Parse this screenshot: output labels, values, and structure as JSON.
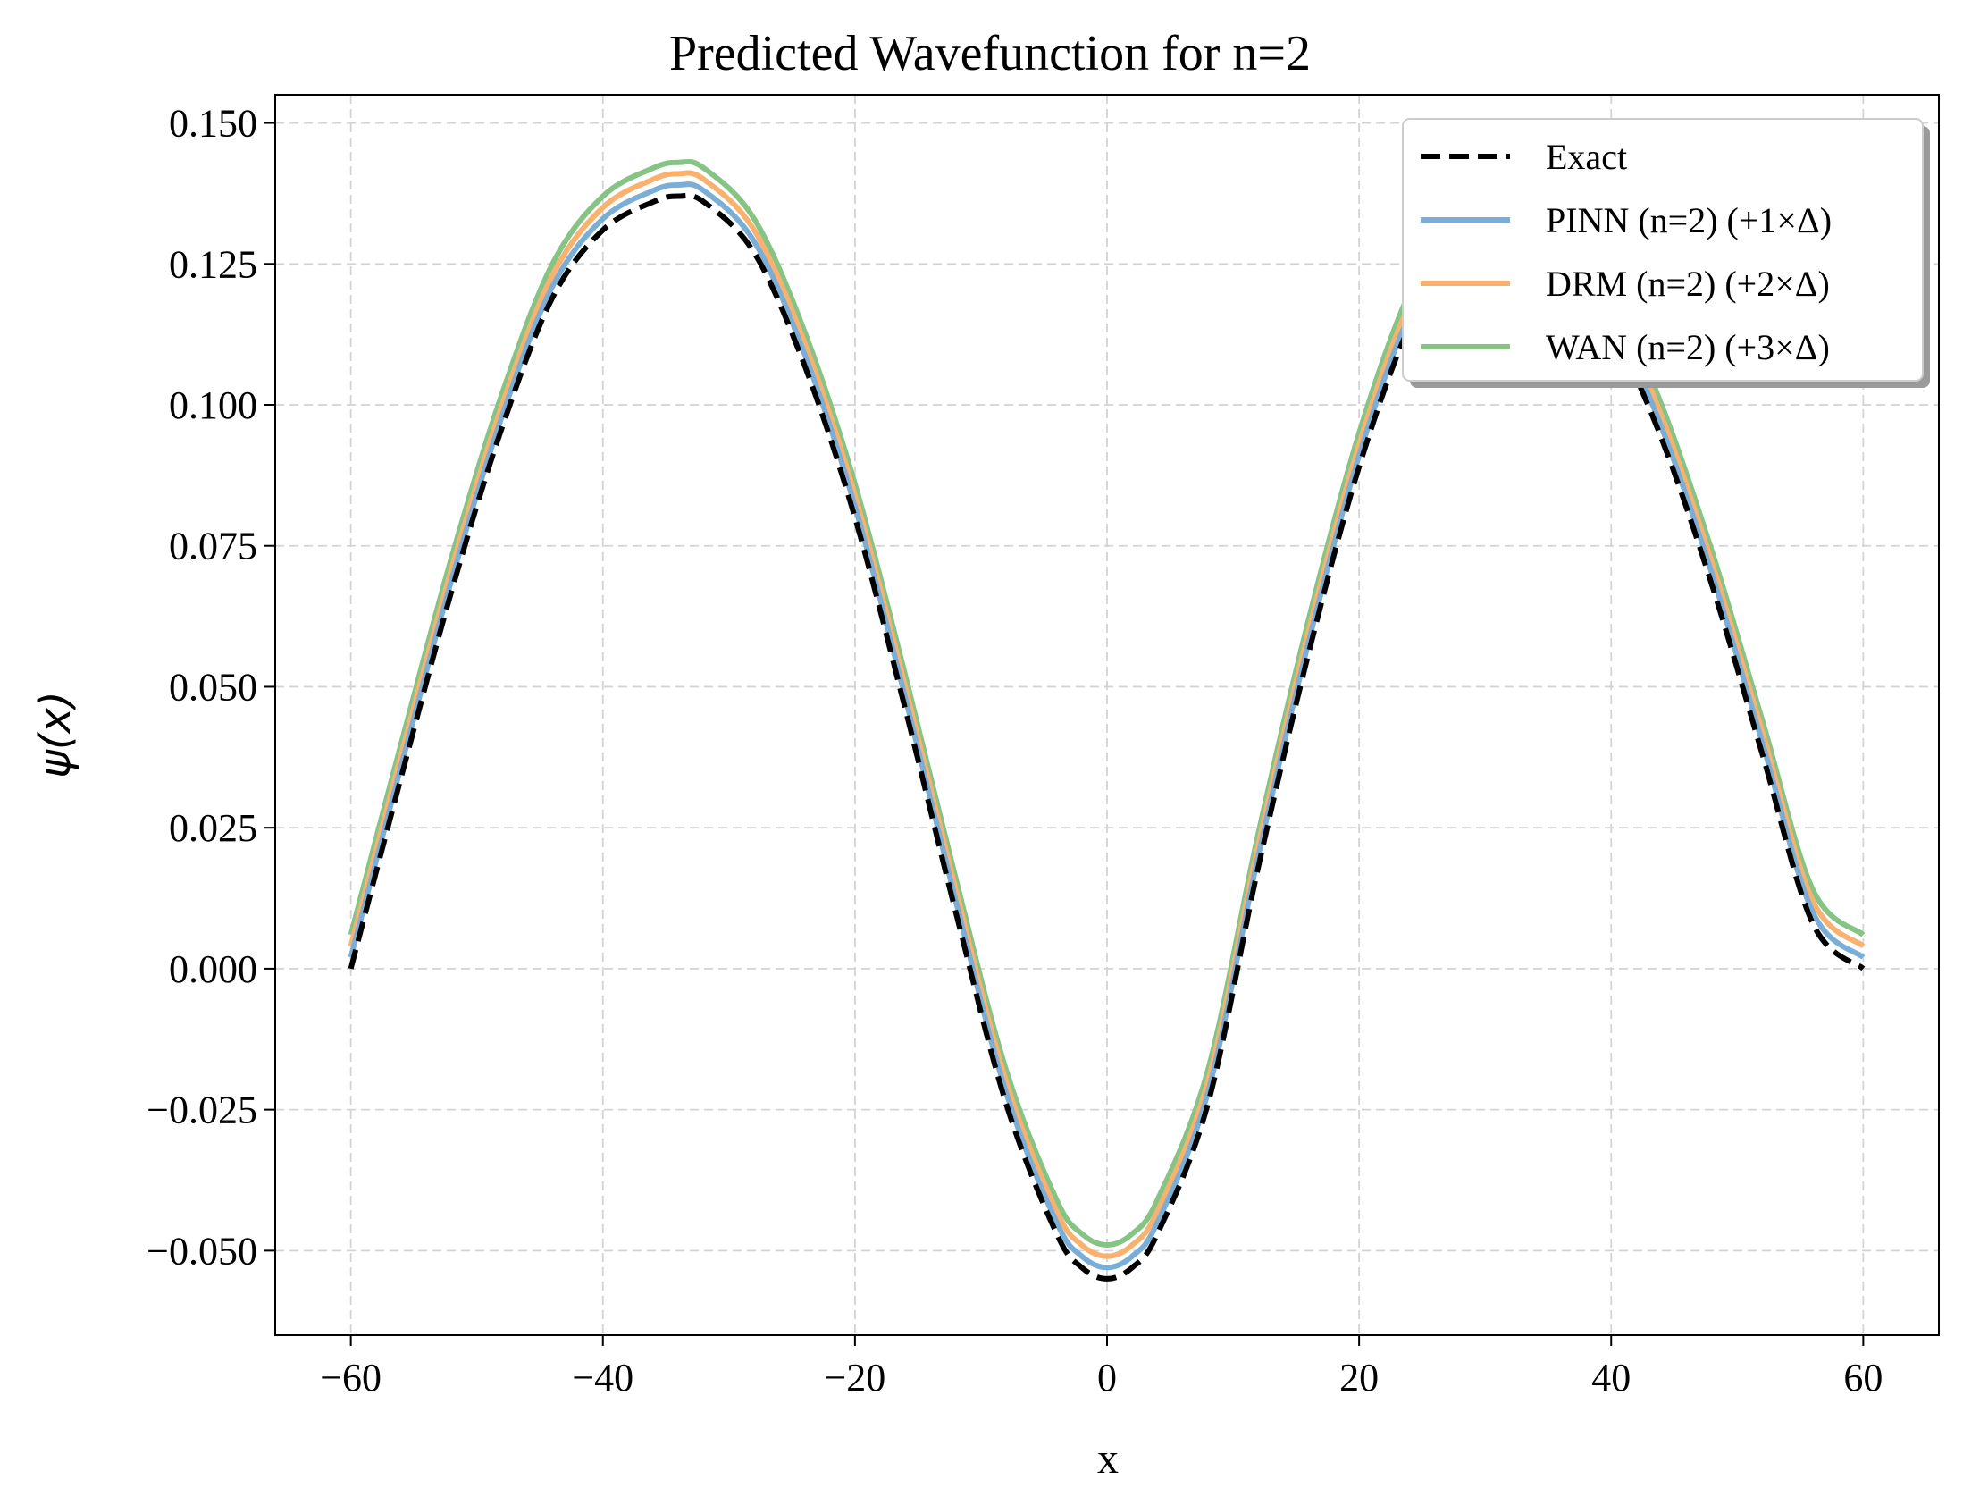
{
  "chart_data": {
    "type": "line",
    "title": "Predicted Wavefunction for n=2",
    "xlabel": "x",
    "ylabel": "ψ(x)",
    "xlim": [
      -66,
      66
    ],
    "ylim": [
      -0.065,
      0.155
    ],
    "x_ticks": [
      -60,
      -40,
      -20,
      0,
      20,
      40,
      60
    ],
    "x_tick_labels": [
      "−60",
      "−40",
      "−20",
      "0",
      "20",
      "40",
      "60"
    ],
    "y_ticks": [
      0.15,
      0.125,
      0.1,
      0.075,
      0.05,
      0.025,
      0.0,
      -0.025,
      -0.05
    ],
    "y_tick_labels": [
      "0.150",
      "0.125",
      "0.100",
      "0.075",
      "0.050",
      "0.025",
      "0.000",
      "−0.025",
      "−0.050"
    ],
    "grid": true,
    "legend_position": "top-right",
    "series": [
      {
        "name": "Exact",
        "color": "#000000",
        "style": "dashed",
        "x": [
          -60,
          -56,
          -52,
          -48,
          -44,
          -40,
          -36,
          -34,
          -32,
          -28,
          -24,
          -20,
          -16,
          -12,
          -8,
          -4,
          -2,
          0,
          2,
          4,
          8,
          12,
          16,
          20,
          24,
          28,
          30,
          32,
          36,
          40,
          44,
          48,
          52,
          56,
          60
        ],
        "y": [
          0.0,
          0.034,
          0.067,
          0.096,
          0.119,
          0.131,
          0.136,
          0.137,
          0.136,
          0.127,
          0.107,
          0.08,
          0.046,
          0.01,
          -0.024,
          -0.047,
          -0.053,
          -0.055,
          -0.053,
          -0.047,
          -0.024,
          0.018,
          0.056,
          0.089,
          0.114,
          0.129,
          0.132,
          0.133,
          0.128,
          0.114,
          0.094,
          0.068,
          0.038,
          0.008,
          0.0
        ]
      },
      {
        "name": "PINN (n=2) (+1×Δ)",
        "color": "#7aaed6",
        "style": "solid",
        "x": [
          -60,
          -56,
          -52,
          -48,
          -44,
          -40,
          -36,
          -34,
          -32,
          -28,
          -24,
          -20,
          -16,
          -12,
          -8,
          -4,
          -2,
          0,
          2,
          4,
          8,
          12,
          16,
          20,
          24,
          28,
          30,
          32,
          36,
          40,
          44,
          48,
          52,
          56,
          60
        ],
        "y": [
          0.002,
          0.036,
          0.069,
          0.098,
          0.121,
          0.133,
          0.138,
          0.139,
          0.138,
          0.129,
          0.109,
          0.082,
          0.048,
          0.012,
          -0.022,
          -0.045,
          -0.051,
          -0.053,
          -0.051,
          -0.045,
          -0.022,
          0.02,
          0.058,
          0.091,
          0.116,
          0.131,
          0.134,
          0.135,
          0.13,
          0.116,
          0.096,
          0.07,
          0.04,
          0.01,
          0.002
        ]
      },
      {
        "name": "DRM (n=2) (+2×Δ)",
        "color": "#f9b170",
        "style": "solid",
        "x": [
          -60,
          -56,
          -52,
          -48,
          -44,
          -40,
          -36,
          -34,
          -32,
          -28,
          -24,
          -20,
          -16,
          -12,
          -8,
          -4,
          -2,
          0,
          2,
          4,
          8,
          12,
          16,
          20,
          24,
          28,
          30,
          32,
          36,
          40,
          44,
          48,
          52,
          56,
          60
        ],
        "y": [
          0.004,
          0.038,
          0.071,
          0.1,
          0.123,
          0.135,
          0.14,
          0.141,
          0.14,
          0.131,
          0.111,
          0.084,
          0.05,
          0.014,
          -0.02,
          -0.043,
          -0.049,
          -0.051,
          -0.049,
          -0.043,
          -0.02,
          0.022,
          0.06,
          0.093,
          0.118,
          0.133,
          0.136,
          0.137,
          0.132,
          0.118,
          0.098,
          0.072,
          0.042,
          0.012,
          0.004
        ]
      },
      {
        "name": "WAN (n=2) (+3×Δ)",
        "color": "#85c484",
        "style": "solid",
        "x": [
          -60,
          -56,
          -52,
          -48,
          -44,
          -40,
          -36,
          -34,
          -32,
          -28,
          -24,
          -20,
          -16,
          -12,
          -8,
          -4,
          -2,
          0,
          2,
          4,
          8,
          12,
          16,
          20,
          24,
          28,
          30,
          32,
          36,
          40,
          44,
          48,
          52,
          56,
          60
        ],
        "y": [
          0.006,
          0.04,
          0.073,
          0.102,
          0.125,
          0.137,
          0.142,
          0.143,
          0.142,
          0.133,
          0.113,
          0.086,
          0.052,
          0.016,
          -0.018,
          -0.041,
          -0.047,
          -0.049,
          -0.047,
          -0.041,
          -0.018,
          0.024,
          0.062,
          0.095,
          0.12,
          0.135,
          0.138,
          0.139,
          0.134,
          0.12,
          0.1,
          0.074,
          0.044,
          0.014,
          0.006
        ]
      }
    ]
  }
}
